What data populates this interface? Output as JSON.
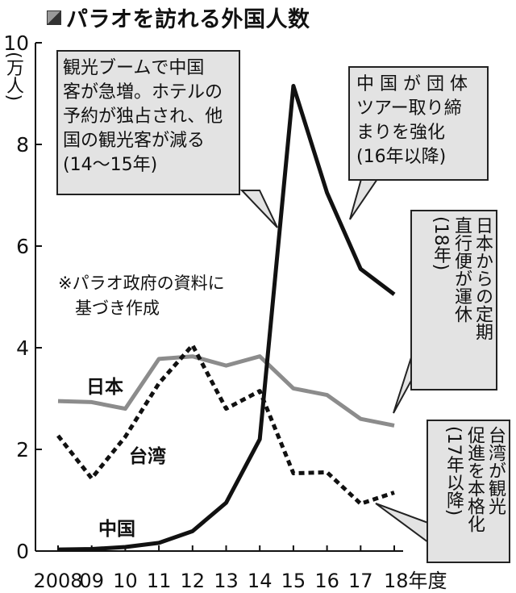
{
  "title": "パラオを訪れる外国人数",
  "icon": "cube-icon",
  "chart_data": {
    "type": "line",
    "title": "パラオを訪れる外国人数",
    "ylabel": "(万人)",
    "xlabel": "年度",
    "x": [
      "2008",
      "09",
      "10",
      "11",
      "12",
      "13",
      "14",
      "15",
      "16",
      "17",
      "18年度"
    ],
    "ylim": [
      0,
      10
    ],
    "yticks": [
      0,
      2,
      4,
      6,
      8,
      10
    ],
    "grid": false,
    "series": [
      {
        "name": "日本",
        "style": "solid-gray",
        "color": "#8c8c8c",
        "values": [
          2.95,
          2.93,
          2.8,
          3.78,
          3.83,
          3.65,
          3.83,
          3.2,
          3.07,
          2.6,
          2.47
        ]
      },
      {
        "name": "台湾",
        "style": "dotted-black",
        "color": "#111111",
        "values": [
          2.27,
          1.43,
          2.25,
          3.3,
          4.05,
          2.8,
          3.15,
          1.53,
          1.55,
          0.93,
          1.15
        ]
      },
      {
        "name": "中国",
        "style": "solid-black",
        "color": "#111111",
        "values": [
          0.03,
          0.04,
          0.08,
          0.16,
          0.39,
          0.95,
          2.2,
          9.15,
          7.05,
          5.55,
          5.05
        ]
      }
    ],
    "annotations": {
      "box1": "観光ブームで中国\n客が急増。ホテルの\n予約が独占され、他\n国の観光客が減る\n(14～15年)",
      "box2": "中 国 が 団 体\nツアー取り締\nまりを強化\n(16年以降)",
      "box3": "日本からの定期\n直行便が運休\n(18年)",
      "box4": "台湾が観光\n促進を本格化\n(17年以降)",
      "note": "※パラオ政府の資料に\n　基づき作成"
    }
  }
}
